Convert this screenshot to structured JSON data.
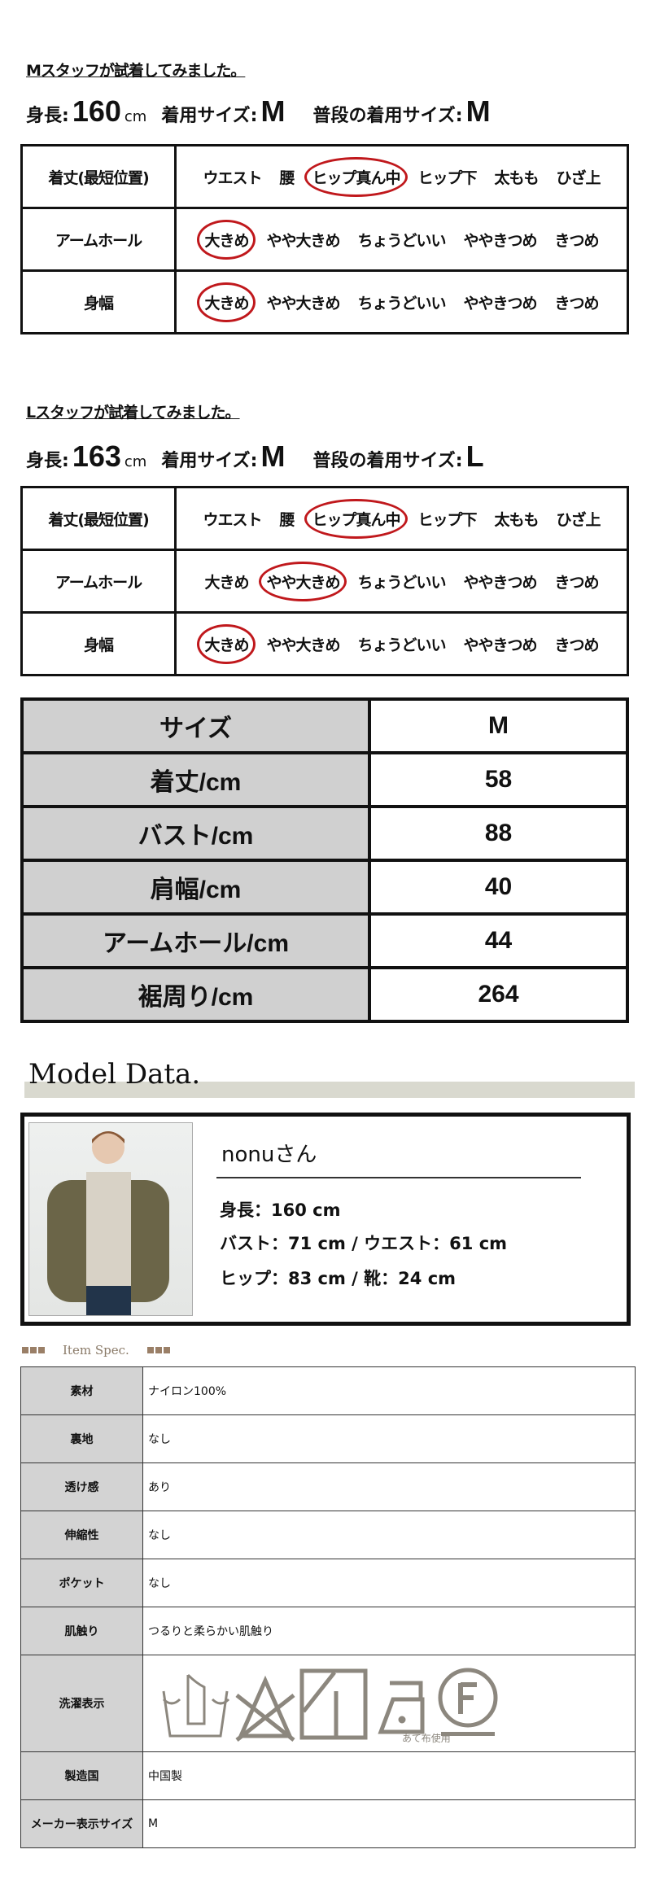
{
  "fits": [
    {
      "title": "Mスタッフが試着してみました。",
      "height_label": "身長:",
      "height": "160",
      "cm": "cm",
      "wear_label": "着用サイズ:",
      "wear": "M",
      "usual_label": "普段の着用サイズ:",
      "usual": "M",
      "rows": [
        {
          "label": "着丈(最短位置)",
          "options": [
            "ウエスト",
            "腰",
            "ヒップ真ん中",
            "ヒップ下",
            "太もも",
            "ひざ上"
          ],
          "selected": 2
        },
        {
          "label": "アームホール",
          "options": [
            "大きめ",
            "やや大きめ",
            "ちょうどいい",
            "ややきつめ",
            "きつめ"
          ],
          "selected": 0
        },
        {
          "label": "身幅",
          "options": [
            "大きめ",
            "やや大きめ",
            "ちょうどいい",
            "ややきつめ",
            "きつめ"
          ],
          "selected": 0
        }
      ]
    },
    {
      "title": "Lスタッフが試着してみました。",
      "height_label": "身長:",
      "height": "163",
      "cm": "cm",
      "wear_label": "着用サイズ:",
      "wear": "M",
      "usual_label": "普段の着用サイズ:",
      "usual": "L",
      "rows": [
        {
          "label": "着丈(最短位置)",
          "options": [
            "ウエスト",
            "腰",
            "ヒップ真ん中",
            "ヒップ下",
            "太もも",
            "ひざ上"
          ],
          "selected": 2
        },
        {
          "label": "アームホール",
          "options": [
            "大きめ",
            "やや大きめ",
            "ちょうどいい",
            "ややきつめ",
            "きつめ"
          ],
          "selected": 1
        },
        {
          "label": "身幅",
          "options": [
            "大きめ",
            "やや大きめ",
            "ちょうどいい",
            "ややきつめ",
            "きつめ"
          ],
          "selected": 0
        }
      ]
    }
  ],
  "size_table": [
    [
      "サイズ",
      "M"
    ],
    [
      "着丈/cm",
      "58"
    ],
    [
      "バスト/cm",
      "88"
    ],
    [
      "肩幅/cm",
      "40"
    ],
    [
      "アームホール/cm",
      "44"
    ],
    [
      "裾周り/cm",
      "264"
    ]
  ],
  "model": {
    "heading": "Model Data.",
    "name": "nonuさん",
    "lines": [
      "身長：160 cm",
      "バスト：71 cm / ウエスト：61 cm",
      "ヒップ：83 cm / 靴：24 cm"
    ]
  },
  "spec": {
    "heading": "Item Spec.",
    "rows": [
      [
        "素材",
        "ナイロン100%"
      ],
      [
        "裏地",
        "なし"
      ],
      [
        "透け感",
        "あり"
      ],
      [
        "伸縮性",
        "なし"
      ],
      [
        "ポケット",
        "なし"
      ],
      [
        "肌触り",
        "つるりと柔らかい肌触り"
      ],
      [
        "洗濯表示",
        ""
      ],
      [
        "製造国",
        "中国製"
      ],
      [
        "メーカー表示サイズ",
        "M"
      ]
    ],
    "wash_icons": [
      "hand-wash-icon",
      "no-bleach-icon",
      "drip-dry-shade-icon",
      "iron-low-with-cloth-icon",
      "dry-clean-f-icon"
    ],
    "iron_note": "あて布使用",
    "icon_color": "#8c877e"
  }
}
